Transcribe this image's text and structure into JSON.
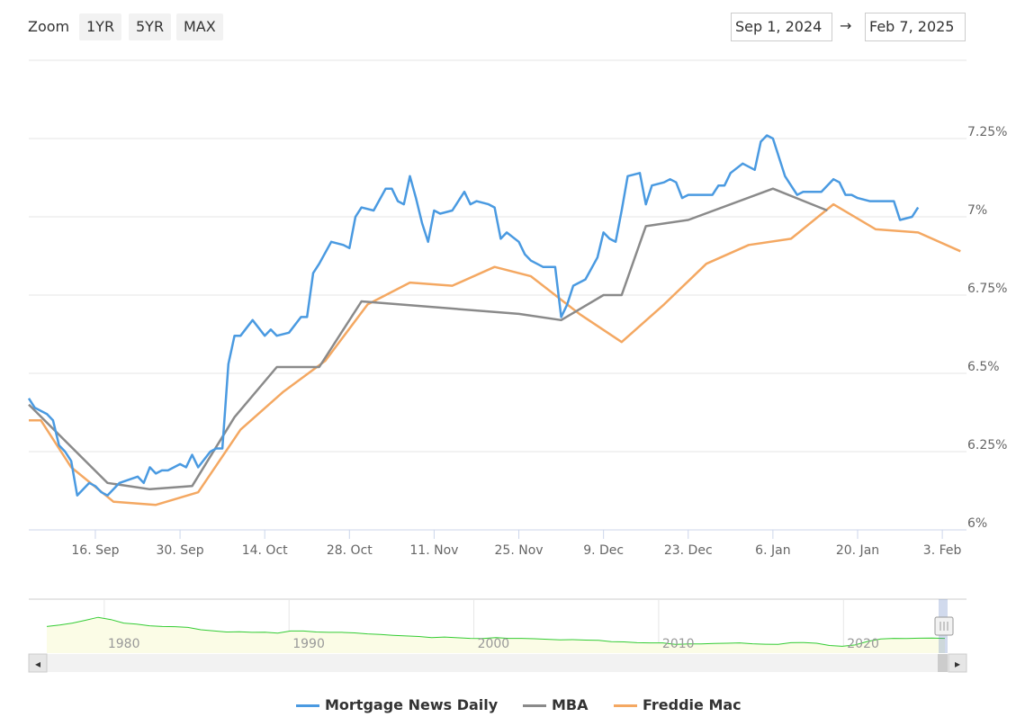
{
  "toolbar": {
    "zoom_label": "Zoom",
    "buttons": [
      "1YR",
      "5YR",
      "MAX"
    ],
    "date_from": "Sep 1, 2024",
    "arrow": "→",
    "date_to": "Feb 7, 2025"
  },
  "chart_data": {
    "type": "line",
    "x_axis": {
      "type": "date",
      "min": "2024-09-05",
      "max": "2025-02-07",
      "tick_labels": [
        "16. Sep",
        "30. Sep",
        "14. Oct",
        "28. Oct",
        "11. Nov",
        "25. Nov",
        "9. Dec",
        "23. Dec",
        "6. Jan",
        "20. Jan",
        "3. Feb"
      ],
      "tick_dates": [
        "2024-09-16",
        "2024-09-30",
        "2024-10-14",
        "2024-10-28",
        "2024-11-11",
        "2024-11-25",
        "2024-12-09",
        "2024-12-23",
        "2025-01-06",
        "2025-01-20",
        "2025-02-03"
      ]
    },
    "y_axis": {
      "min": 6.0,
      "max": 7.5,
      "ticks": [
        6.0,
        6.25,
        6.5,
        6.75,
        7.0,
        7.25
      ],
      "tick_labels": [
        "6%",
        "6.25%",
        "6.5%",
        "6.75%",
        "7%",
        "7.25%"
      ],
      "position": "right",
      "grid": true
    },
    "legend_position": "bottom-center",
    "series": [
      {
        "name": "Mortgage News Daily",
        "color": "#4a9ae1",
        "points": [
          [
            "2024-09-05",
            6.42
          ],
          [
            "2024-09-06",
            6.39
          ],
          [
            "2024-09-08",
            6.37
          ],
          [
            "2024-09-09",
            6.35
          ],
          [
            "2024-09-10",
            6.27
          ],
          [
            "2024-09-11",
            6.25
          ],
          [
            "2024-09-12",
            6.22
          ],
          [
            "2024-09-13",
            6.11
          ],
          [
            "2024-09-15",
            6.15
          ],
          [
            "2024-09-16",
            6.14
          ],
          [
            "2024-09-17",
            6.12
          ],
          [
            "2024-09-18",
            6.11
          ],
          [
            "2024-09-19",
            6.13
          ],
          [
            "2024-09-20",
            6.15
          ],
          [
            "2024-09-23",
            6.17
          ],
          [
            "2024-09-24",
            6.15
          ],
          [
            "2024-09-25",
            6.2
          ],
          [
            "2024-09-26",
            6.18
          ],
          [
            "2024-09-27",
            6.19
          ],
          [
            "2024-09-28",
            6.19
          ],
          [
            "2024-09-30",
            6.21
          ],
          [
            "2024-10-01",
            6.2
          ],
          [
            "2024-10-02",
            6.24
          ],
          [
            "2024-10-03",
            6.2
          ],
          [
            "2024-10-05",
            6.25
          ],
          [
            "2024-10-06",
            6.26
          ],
          [
            "2024-10-07",
            6.26
          ],
          [
            "2024-10-08",
            6.53
          ],
          [
            "2024-10-09",
            6.62
          ],
          [
            "2024-10-10",
            6.62
          ],
          [
            "2024-10-12",
            6.67
          ],
          [
            "2024-10-14",
            6.62
          ],
          [
            "2024-10-15",
            6.64
          ],
          [
            "2024-10-16",
            6.62
          ],
          [
            "2024-10-18",
            6.63
          ],
          [
            "2024-10-20",
            6.68
          ],
          [
            "2024-10-21",
            6.68
          ],
          [
            "2024-10-22",
            6.82
          ],
          [
            "2024-10-23",
            6.85
          ],
          [
            "2024-10-25",
            6.92
          ],
          [
            "2024-10-27",
            6.91
          ],
          [
            "2024-10-28",
            6.9
          ],
          [
            "2024-10-29",
            7.0
          ],
          [
            "2024-10-30",
            7.03
          ],
          [
            "2024-11-01",
            7.02
          ],
          [
            "2024-11-03",
            7.09
          ],
          [
            "2024-11-04",
            7.09
          ],
          [
            "2024-11-05",
            7.05
          ],
          [
            "2024-11-06",
            7.04
          ],
          [
            "2024-11-07",
            7.13
          ],
          [
            "2024-11-08",
            7.06
          ],
          [
            "2024-11-09",
            6.98
          ],
          [
            "2024-11-10",
            6.92
          ],
          [
            "2024-11-11",
            7.02
          ],
          [
            "2024-11-12",
            7.01
          ],
          [
            "2024-11-14",
            7.02
          ],
          [
            "2024-11-16",
            7.08
          ],
          [
            "2024-11-17",
            7.04
          ],
          [
            "2024-11-18",
            7.05
          ],
          [
            "2024-11-20",
            7.04
          ],
          [
            "2024-11-21",
            7.03
          ],
          [
            "2024-11-22",
            6.93
          ],
          [
            "2024-11-23",
            6.95
          ],
          [
            "2024-11-25",
            6.92
          ],
          [
            "2024-11-26",
            6.88
          ],
          [
            "2024-11-27",
            6.86
          ],
          [
            "2024-11-29",
            6.84
          ],
          [
            "2024-12-01",
            6.84
          ],
          [
            "2024-12-02",
            6.68
          ],
          [
            "2024-12-03",
            6.72
          ],
          [
            "2024-12-04",
            6.78
          ],
          [
            "2024-12-06",
            6.8
          ],
          [
            "2024-12-08",
            6.87
          ],
          [
            "2024-12-09",
            6.95
          ],
          [
            "2024-12-10",
            6.93
          ],
          [
            "2024-12-11",
            6.92
          ],
          [
            "2024-12-12",
            7.02
          ],
          [
            "2024-12-13",
            7.13
          ],
          [
            "2024-12-15",
            7.14
          ],
          [
            "2024-12-16",
            7.04
          ],
          [
            "2024-12-17",
            7.1
          ],
          [
            "2024-12-19",
            7.11
          ],
          [
            "2024-12-20",
            7.12
          ],
          [
            "2024-12-21",
            7.11
          ],
          [
            "2024-12-22",
            7.06
          ],
          [
            "2024-12-23",
            7.07
          ],
          [
            "2024-12-27",
            7.07
          ],
          [
            "2024-12-28",
            7.1
          ],
          [
            "2024-12-29",
            7.1
          ],
          [
            "2024-12-30",
            7.14
          ],
          [
            "2025-01-01",
            7.17
          ],
          [
            "2025-01-03",
            7.15
          ],
          [
            "2025-01-04",
            7.24
          ],
          [
            "2025-01-05",
            7.26
          ],
          [
            "2025-01-06",
            7.25
          ],
          [
            "2025-01-08",
            7.13
          ],
          [
            "2025-01-09",
            7.1
          ],
          [
            "2025-01-10",
            7.07
          ],
          [
            "2025-01-11",
            7.08
          ],
          [
            "2025-01-14",
            7.08
          ],
          [
            "2025-01-15",
            7.1
          ],
          [
            "2025-01-16",
            7.12
          ],
          [
            "2025-01-17",
            7.11
          ],
          [
            "2025-01-18",
            7.07
          ],
          [
            "2025-01-19",
            7.07
          ],
          [
            "2025-01-20",
            7.06
          ],
          [
            "2025-01-22",
            7.05
          ],
          [
            "2025-01-23",
            7.05
          ],
          [
            "2025-01-26",
            7.05
          ],
          [
            "2025-01-27",
            6.99
          ],
          [
            "2025-01-29",
            7.0
          ],
          [
            "2025-01-30",
            7.03
          ]
        ]
      },
      {
        "name": "MBA",
        "color": "#8a8a8a",
        "points": [
          [
            "2024-09-05",
            6.4
          ],
          [
            "2024-09-18",
            6.15
          ],
          [
            "2024-09-25",
            6.13
          ],
          [
            "2024-10-02",
            6.14
          ],
          [
            "2024-10-09",
            6.36
          ],
          [
            "2024-10-16",
            6.52
          ],
          [
            "2024-10-23",
            6.52
          ],
          [
            "2024-10-30",
            6.73
          ],
          [
            "2024-11-25",
            6.69
          ],
          [
            "2024-12-02",
            6.67
          ],
          [
            "2024-12-09",
            6.75
          ],
          [
            "2024-12-12",
            6.75
          ],
          [
            "2024-12-16",
            6.97
          ],
          [
            "2024-12-23",
            6.99
          ],
          [
            "2025-01-06",
            7.09
          ],
          [
            "2025-01-15",
            7.02
          ]
        ]
      },
      {
        "name": "Freddie Mac",
        "color": "#f4a862",
        "points": [
          [
            "2024-09-05",
            6.35
          ],
          [
            "2024-09-07",
            6.35
          ],
          [
            "2024-09-12",
            6.2
          ],
          [
            "2024-09-19",
            6.09
          ],
          [
            "2024-09-26",
            6.08
          ],
          [
            "2024-10-03",
            6.12
          ],
          [
            "2024-10-10",
            6.32
          ],
          [
            "2024-10-17",
            6.44
          ],
          [
            "2024-10-24",
            6.54
          ],
          [
            "2024-10-31",
            6.72
          ],
          [
            "2024-11-07",
            6.79
          ],
          [
            "2024-11-14",
            6.78
          ],
          [
            "2024-11-21",
            6.84
          ],
          [
            "2024-11-27",
            6.81
          ],
          [
            "2024-12-05",
            6.69
          ],
          [
            "2024-12-12",
            6.6
          ],
          [
            "2024-12-19",
            6.72
          ],
          [
            "2024-12-26",
            6.85
          ],
          [
            "2025-01-02",
            6.91
          ],
          [
            "2025-01-09",
            6.93
          ],
          [
            "2025-01-16",
            7.04
          ],
          [
            "2025-01-23",
            6.96
          ],
          [
            "2025-01-30",
            6.95
          ],
          [
            "2025-02-06",
            6.89
          ]
        ]
      }
    ]
  },
  "navigator": {
    "year_labels": [
      "1980",
      "1990",
      "2000",
      "2010",
      "2020"
    ],
    "scroll_left_arrow": "◂",
    "scroll_right_arrow": "▸",
    "series_color": "#33cc33",
    "series_values": [
      13.2,
      14.0,
      15.0,
      16.5,
      18.1,
      16.9,
      15.0,
      14.5,
      13.6,
      13.2,
      13.1,
      12.7,
      11.5,
      10.9,
      10.3,
      10.4,
      10.1,
      10.2,
      9.7,
      10.8,
      10.8,
      10.3,
      10.1,
      10.1,
      9.8,
      9.3,
      9.0,
      8.5,
      8.2,
      7.9,
      7.3,
      7.6,
      7.2,
      6.9,
      6.8,
      7.3,
      6.9,
      6.9,
      6.7,
      6.4,
      6.1,
      6.2,
      6.0,
      5.9,
      5.1,
      5.0,
      4.6,
      4.5,
      4.5,
      3.7,
      3.9,
      3.9,
      4.2,
      4.3,
      4.5,
      4.0,
      3.8,
      3.7,
      4.6,
      4.7,
      4.3,
      3.1,
      2.7,
      3.4,
      5.3,
      6.6,
      6.9,
      6.8,
      7.0,
      7.1,
      6.9
    ]
  },
  "legend": {
    "items": [
      {
        "name": "Mortgage News Daily",
        "color": "#4a9ae1"
      },
      {
        "name": "MBA",
        "color": "#8a8a8a"
      },
      {
        "name": "Freddie Mac",
        "color": "#f4a862"
      }
    ]
  }
}
